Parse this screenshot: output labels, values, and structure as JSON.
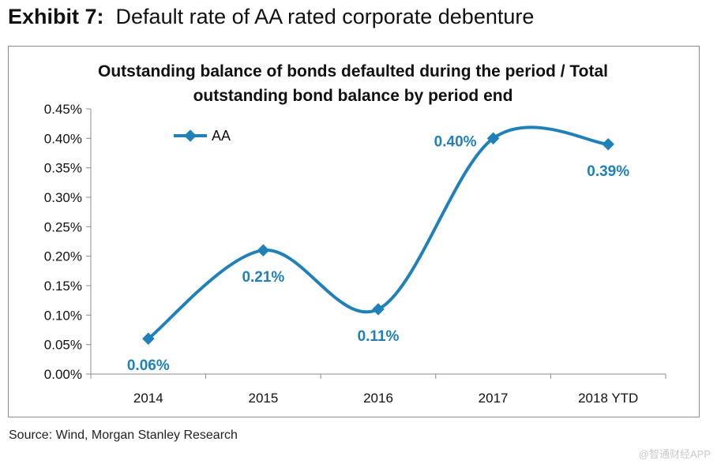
{
  "header": {
    "exhibit_label": "Exhibit 7:",
    "title": "Default rate of AA rated corporate debenture"
  },
  "chart_data": {
    "type": "line",
    "title": "Outstanding balance of bonds defaulted during the period / Total outstanding bond balance by period end",
    "title_lines": [
      "Outstanding balance of bonds defaulted during the period / Total",
      "outstanding bond balance by period end"
    ],
    "categories": [
      "2014",
      "2015",
      "2016",
      "2017",
      "2018 YTD"
    ],
    "series": [
      {
        "name": "AA",
        "values": [
          0.06,
          0.21,
          0.11,
          0.4,
          0.39
        ],
        "color": "#2080b8"
      }
    ],
    "data_labels": [
      "0.06%",
      "0.21%",
      "0.11%",
      "0.40%",
      "0.39%"
    ],
    "y_ticks": [
      "0.00%",
      "0.05%",
      "0.10%",
      "0.15%",
      "0.20%",
      "0.25%",
      "0.30%",
      "0.35%",
      "0.40%",
      "0.45%"
    ],
    "ylim": [
      0,
      0.45
    ],
    "xlabel": "",
    "ylabel": "",
    "grid": false,
    "legend": "top-left",
    "smooth": true
  },
  "footer": {
    "source": "Source: Wind, Morgan Stanley Research",
    "watermark": "@智通财经APP"
  }
}
